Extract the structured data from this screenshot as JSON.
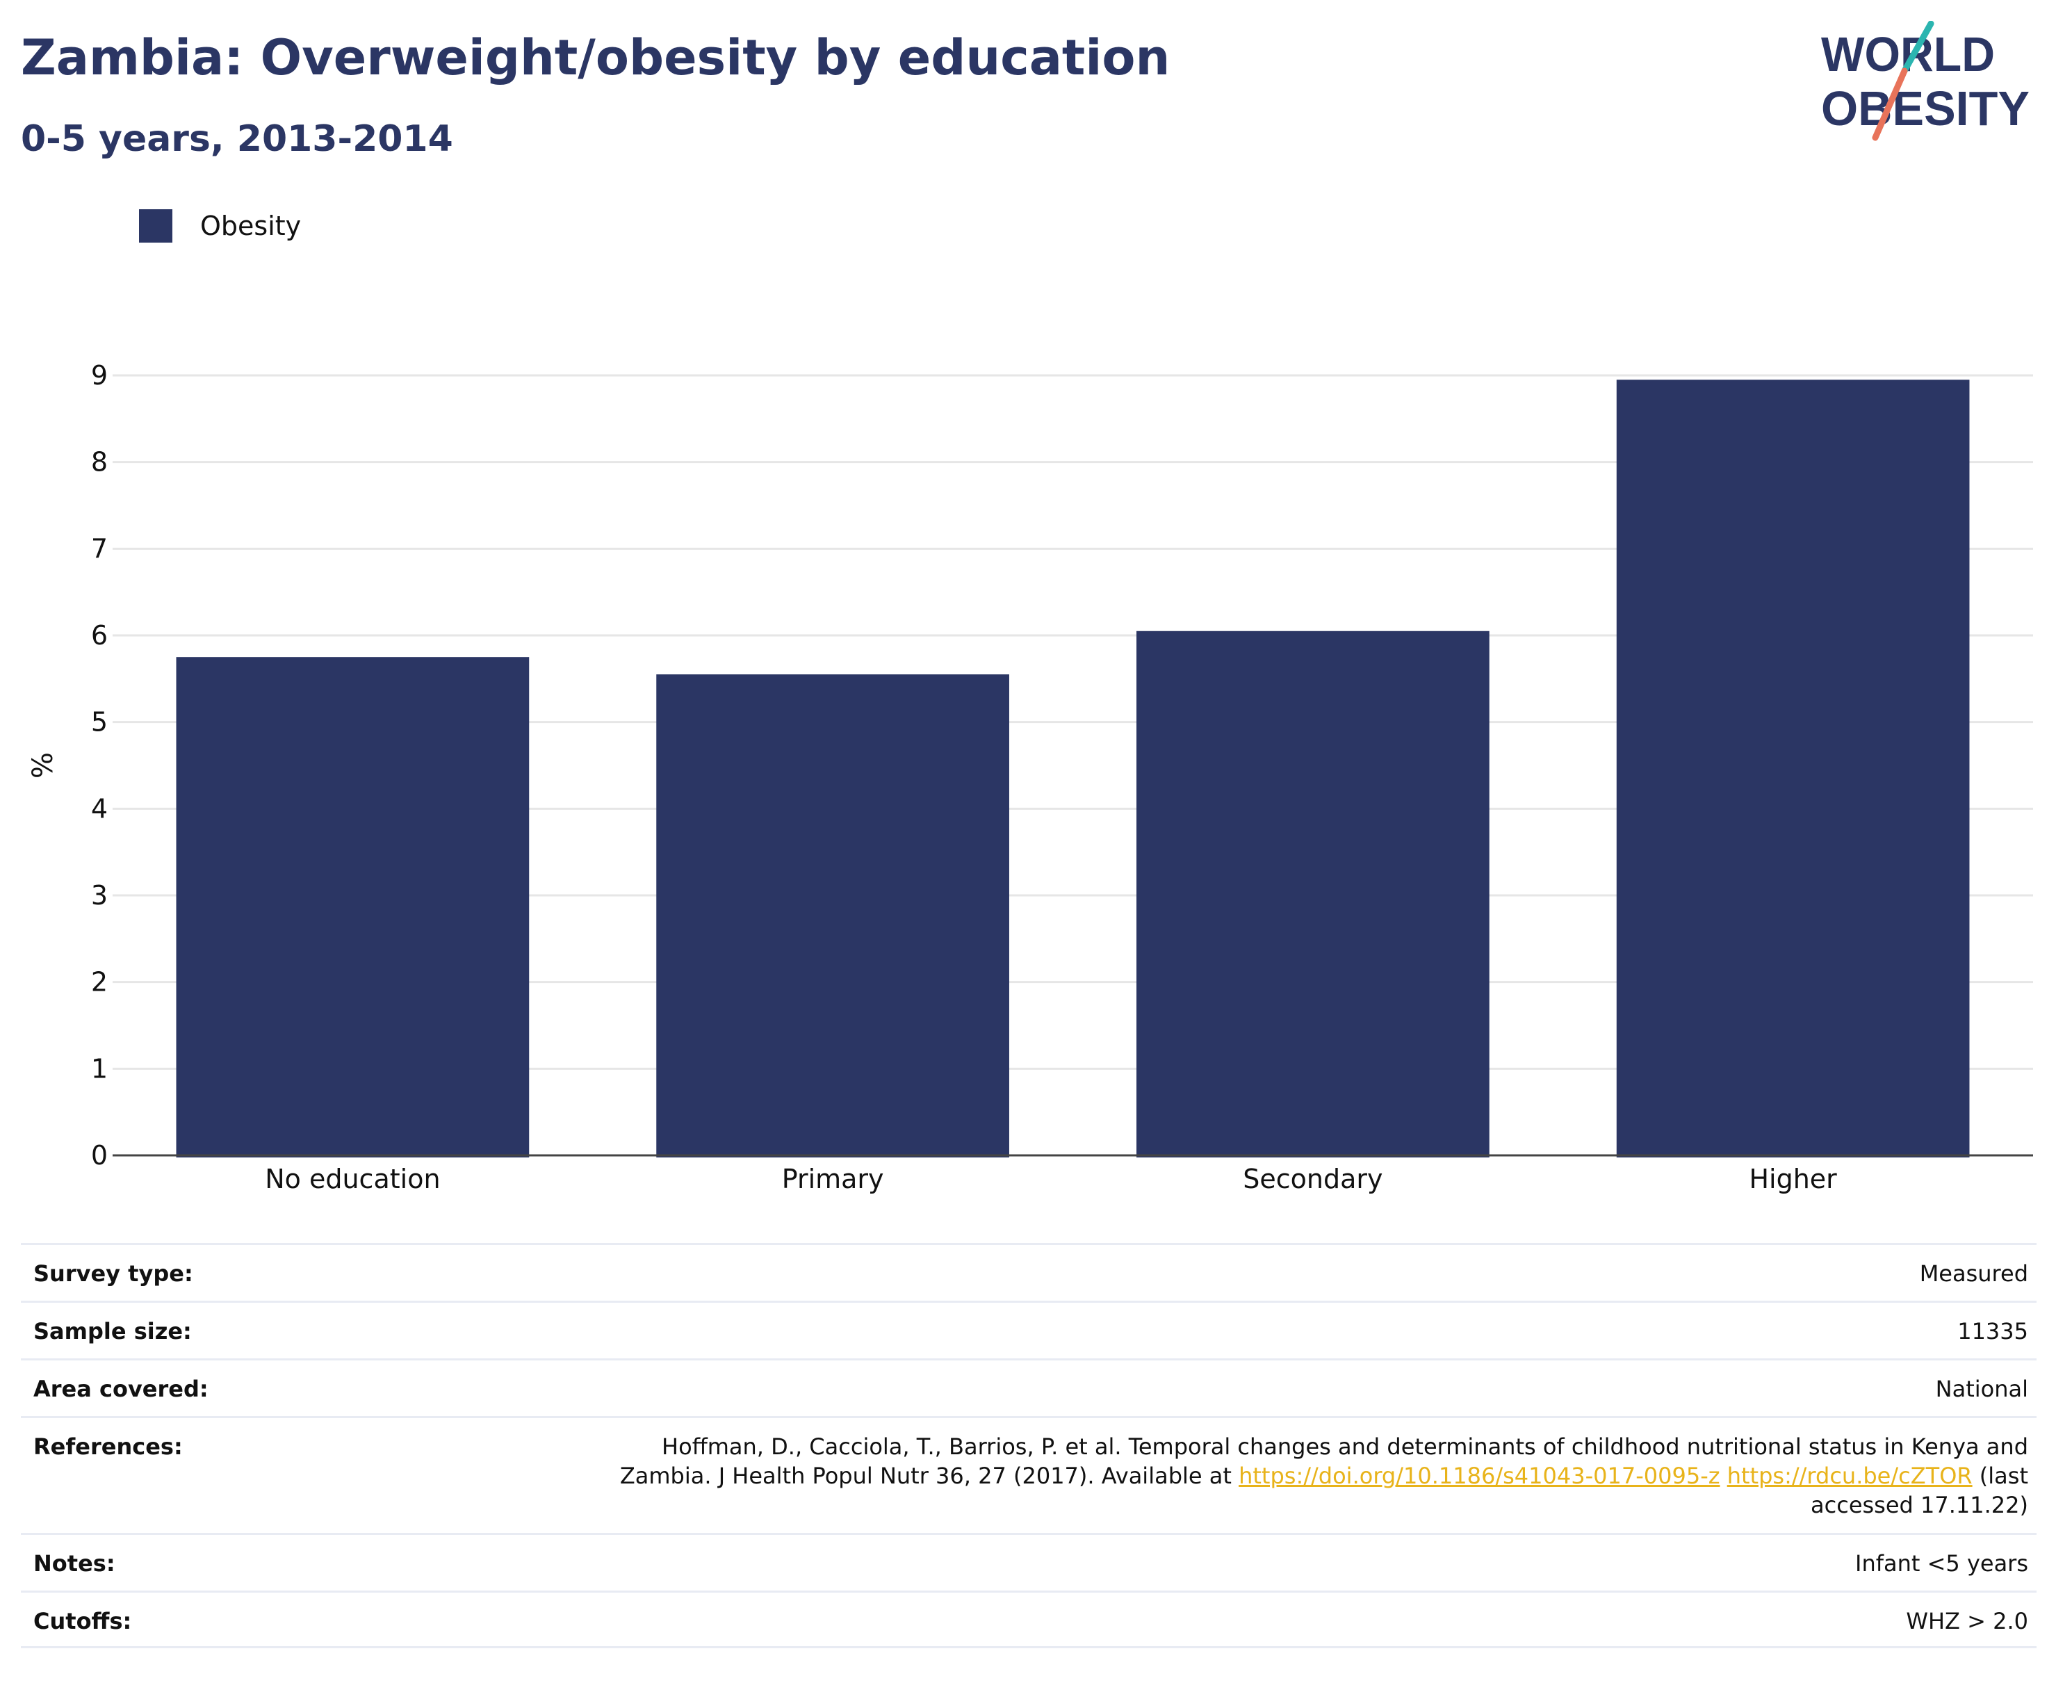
{
  "header": {
    "title": "Zambia: Overweight/obesity by education",
    "subtitle": "0-5 years, 2013-2014"
  },
  "logo": {
    "line1": "WORLD",
    "line2": "OBESITY",
    "colors": {
      "text": "#2b3664",
      "slash_top": "#2bb5b0",
      "slash_bottom": "#e8735a"
    }
  },
  "colors": {
    "bar": "#2b3664",
    "grid": "#e6e6e6",
    "axis": "#444444",
    "link": "#e8b31a",
    "divider": "#e8ebf3"
  },
  "chart_data": {
    "type": "bar",
    "categories": [
      "No education",
      "Primary",
      "Secondary",
      "Higher"
    ],
    "series": [
      {
        "name": "Obesity",
        "values": [
          5.75,
          5.55,
          6.05,
          8.95
        ]
      }
    ],
    "ylabel": "%",
    "xlabel": "",
    "ylim": [
      0,
      9
    ],
    "yticks": [
      0,
      1,
      2,
      3,
      4,
      5,
      6,
      7,
      8,
      9
    ],
    "grid": true,
    "legend": "top-left"
  },
  "info": {
    "survey_type": {
      "label": "Survey type:",
      "value": "Measured"
    },
    "sample_size": {
      "label": "Sample size:",
      "value": "11335"
    },
    "area_covered": {
      "label": "Area covered:",
      "value": "National"
    },
    "references": {
      "label": "References:",
      "text_before": "Hoffman, D., Cacciola, T., Barrios, P. et al. Temporal changes and determinants of childhood nutritional status in Kenya and Zambia. J Health Popul Nutr 36, 27 (2017). Available at ",
      "link1": "https://doi.org/10.1186/s41043-017-0095-z",
      "link2": "https://rdcu.be/cZTOR",
      "text_after": " (last accessed 17.11.22)"
    },
    "notes": {
      "label": "Notes:",
      "value": "Infant <5 years"
    },
    "cutoffs": {
      "label": "Cutoffs:",
      "value": "WHZ > 2.0"
    }
  }
}
